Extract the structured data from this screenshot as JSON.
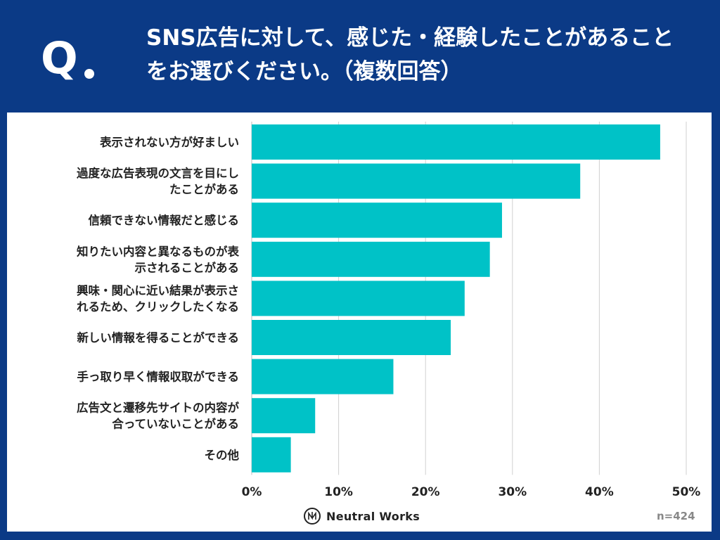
{
  "question": {
    "mark": "Q",
    "text": "SNS広告に対して、感じた・経験したことがあることをお選びください。（複数回答）"
  },
  "chart_data": {
    "type": "bar",
    "orientation": "horizontal",
    "categories": [
      [
        "表示されない方が好ましい"
      ],
      [
        "過度な広告表現の文言を目にし",
        "たことがある"
      ],
      [
        "信頼できない情報だと感じる"
      ],
      [
        "知りたい内容と異なるものが表",
        "示されることがある"
      ],
      [
        "興味・関心に近い結果が表示さ",
        "れるため、クリックしたくなる"
      ],
      [
        "新しい情報を得ることができる"
      ],
      [
        "手っ取り早く情報収取ができる"
      ],
      [
        "広告文と遷移先サイトの内容が",
        "合っていないことがある"
      ],
      [
        "その他"
      ]
    ],
    "values": [
      47.0,
      37.8,
      28.8,
      27.4,
      24.5,
      22.9,
      16.3,
      7.3,
      4.5
    ],
    "xlim": [
      0,
      50
    ],
    "ticks": [
      0,
      10,
      20,
      30,
      40,
      50
    ],
    "tick_labels": [
      "0%",
      "10%",
      "20%",
      "30%",
      "40%",
      "50%"
    ],
    "bar_color": "#00c2c7",
    "grid": true
  },
  "footer": {
    "brand": "Neutral Works",
    "sample_size": "n=424"
  },
  "colors": {
    "header_bg": "#0b3a86",
    "bar": "#00c2c7"
  }
}
